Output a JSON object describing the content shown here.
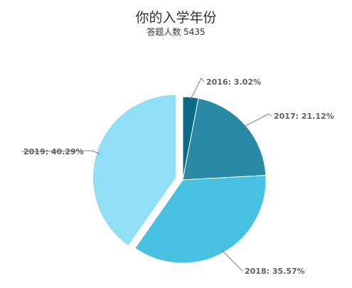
{
  "chart_data": {
    "type": "pie",
    "title": "你的入学年份",
    "subtitle": "答题人数 5435",
    "slices": [
      {
        "label": "2016",
        "value": 3.02,
        "display": "2016: 3.02%",
        "color": "#0b6a85"
      },
      {
        "label": "2017",
        "value": 21.12,
        "display": "2017: 21.12%",
        "color": "#2a8aa6"
      },
      {
        "label": "2018",
        "value": 35.57,
        "display": "2018: 35.57%",
        "color": "#48c0e2"
      },
      {
        "label": "2019",
        "value": 40.29,
        "display": "2019: 40.29%",
        "color": "#91dff4",
        "exploded": true
      }
    ],
    "legend": "none",
    "data_labels": "outside-with-connectors"
  }
}
